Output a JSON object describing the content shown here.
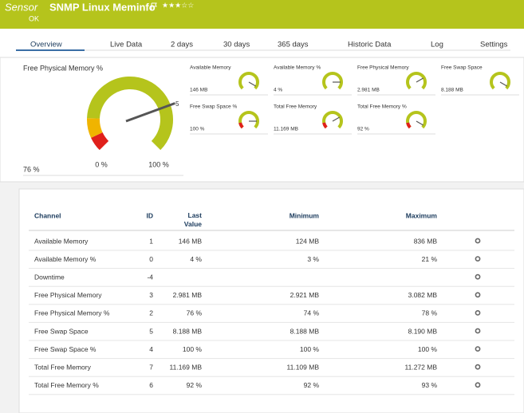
{
  "header": {
    "prefix": "Sensor",
    "title": "SNMP Linux Meminfo",
    "status": "OK"
  },
  "tabs": [
    "Overview",
    "Live Data",
    "2  days",
    "30  days",
    "365  days",
    "Historic Data",
    "Log",
    "Settings"
  ],
  "main_gauge": {
    "label": "Free Physical Memory %",
    "value_label": "76 %",
    "min_label": "0 %",
    "max_label": "100 %",
    "needle_label": "5"
  },
  "gauges": [
    {
      "name": "Available Memory",
      "value": "146 MB"
    },
    {
      "name": "Available Memory %",
      "value": "4 %"
    },
    {
      "name": "Free Physical Memory",
      "value": "2.981 MB"
    },
    {
      "name": "Free Swap Space",
      "value": "8.188 MB"
    },
    {
      "name": "Free Swap Space %",
      "value": "100 %"
    },
    {
      "name": "Total Free Memory",
      "value": "11.169 MB"
    },
    {
      "name": "Total Free Memory %",
      "value": "92 %"
    }
  ],
  "table": {
    "columns": [
      "Channel",
      "ID",
      "Last Value",
      "Minimum",
      "Maximum"
    ],
    "rows": [
      [
        "Available Memory",
        "1",
        "146 MB",
        "124 MB",
        "836 MB"
      ],
      [
        "Available Memory %",
        "0",
        "4 %",
        "3 %",
        "21 %"
      ],
      [
        "Downtime",
        "-4",
        "",
        "",
        ""
      ],
      [
        "Free Physical Memory",
        "3",
        "2.981 MB",
        "2.921 MB",
        "3.082 MB"
      ],
      [
        "Free Physical Memory %",
        "2",
        "76 %",
        "74 %",
        "78 %"
      ],
      [
        "Free Swap Space",
        "5",
        "8.188 MB",
        "8.188 MB",
        "8.190 MB"
      ],
      [
        "Free Swap Space %",
        "4",
        "100 %",
        "100 %",
        "100 %"
      ],
      [
        "Total Free Memory",
        "7",
        "11.169 MB",
        "11.109 MB",
        "11.272 MB"
      ],
      [
        "Total Free Memory %",
        "6",
        "92 %",
        "92 %",
        "93 %"
      ]
    ]
  }
}
